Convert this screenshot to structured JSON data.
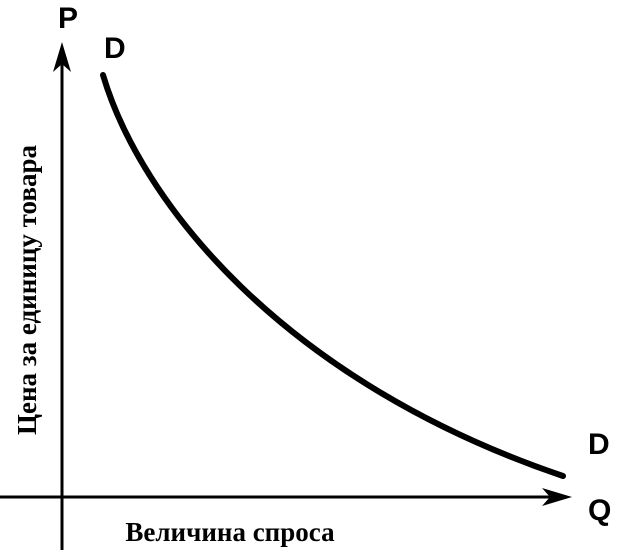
{
  "axes": {
    "y_letter": "P",
    "x_letter": "Q",
    "y_label": "Цена за единицу товара",
    "x_label": "Величина спроса"
  },
  "curve": {
    "label_start": "D",
    "label_end": "D"
  }
}
